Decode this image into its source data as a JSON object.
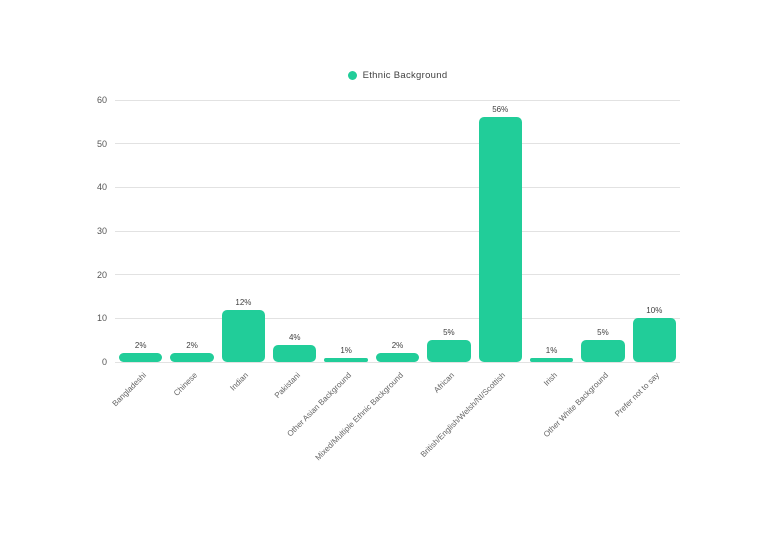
{
  "legend": {
    "label": "Ethnic Background"
  },
  "colors": {
    "bar": "#21CD99",
    "gridline": "#e2e2e2",
    "axis_text": "#555555",
    "label_text": "#3f3f3f"
  },
  "chart_data": {
    "type": "bar",
    "title": "",
    "legend_entries": [
      "Ethnic Background"
    ],
    "legend_position": "top-center",
    "categories": [
      "Bangladeshi",
      "Chinese",
      "Indian",
      "Pakistani",
      "Other Asian Background",
      "Mixed/Multiple Ethnic Background",
      "African",
      "British/English/Welsh/NI/Scottish",
      "Irish",
      "Other White Background",
      "Prefer not to say"
    ],
    "values": [
      2,
      2,
      12,
      4,
      1,
      2,
      5,
      56,
      1,
      5,
      10
    ],
    "value_labels": [
      "2%",
      "2%",
      "12%",
      "4%",
      "1%",
      "2%",
      "5%",
      "56%",
      "1%",
      "5%",
      "10%"
    ],
    "xlabel": "",
    "ylabel": "",
    "ylim": [
      0,
      60
    ],
    "y_ticks": [
      0,
      10,
      20,
      30,
      40,
      50,
      60
    ],
    "grid": true,
    "bar_color": "#21CD99"
  }
}
